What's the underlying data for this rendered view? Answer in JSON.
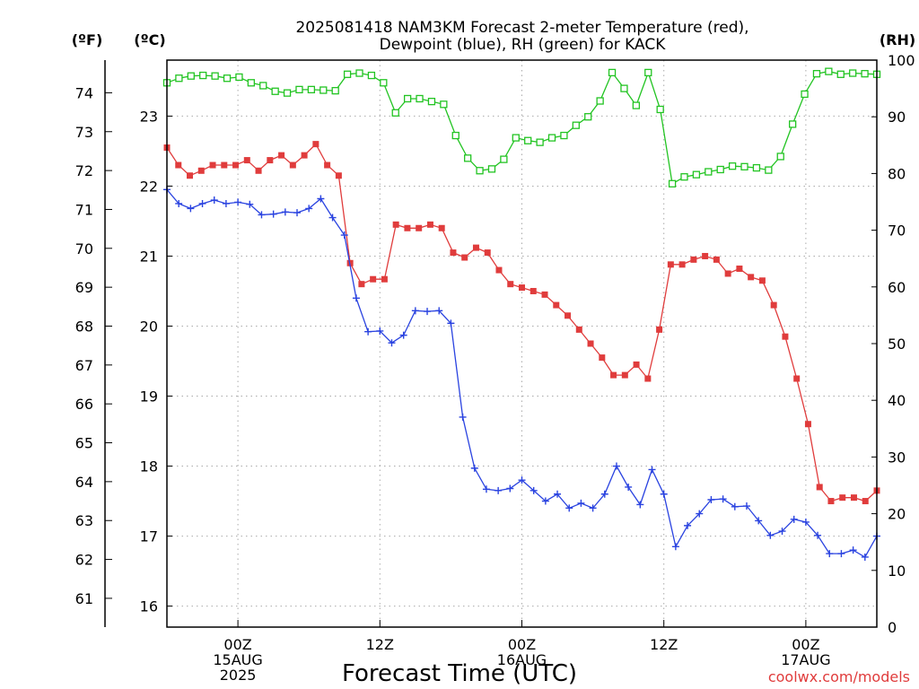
{
  "chart_data": {
    "type": "line",
    "title_line1": "2025081418 NAM3KM Forecast 2-meter Temperature (red),",
    "title_line2": "Dewpoint (blue), RH (green) for KACK",
    "xlabel": "Forecast Time (UTC)",
    "credit": "coolwx.com/models",
    "units": {
      "fahrenheit": "(ºF)",
      "celsius": "(ºC)",
      "rh": "(RH)"
    },
    "x_range_hours": [
      0,
      60
    ],
    "y_celsius_range": [
      15.7,
      23.8
    ],
    "y_rh_range": [
      0,
      100
    ],
    "x_ticks": [
      {
        "hour": 6,
        "lines": [
          "00Z",
          "15AUG",
          "2025"
        ]
      },
      {
        "hour": 18,
        "lines": [
          "12Z"
        ]
      },
      {
        "hour": 30,
        "lines": [
          "00Z",
          "16AUG"
        ]
      },
      {
        "hour": 42,
        "lines": [
          "12Z"
        ]
      },
      {
        "hour": 54,
        "lines": [
          "00Z",
          "17AUG"
        ]
      }
    ],
    "celsius_ticks": [
      16,
      17,
      18,
      19,
      20,
      21,
      22,
      23
    ],
    "fahrenheit_ticks": [
      61,
      62,
      63,
      64,
      65,
      66,
      67,
      68,
      69,
      70,
      71,
      72,
      73,
      74
    ],
    "rh_ticks": [
      0,
      10,
      20,
      30,
      40,
      50,
      60,
      70,
      80,
      90,
      100
    ],
    "series": [
      {
        "key": "temperature",
        "color": "#e03c3c",
        "marker": "filled-square",
        "axis": "celsius",
        "values": [
          22.55,
          22.3,
          22.15,
          22.22,
          22.3,
          22.3,
          22.3,
          22.37,
          22.22,
          22.37,
          22.44,
          22.3,
          22.44,
          22.6,
          22.3,
          22.15,
          20.9,
          20.6,
          20.67,
          20.67,
          21.45,
          21.4,
          21.4,
          21.45,
          21.4,
          21.05,
          20.98,
          21.12,
          21.05,
          20.8,
          20.6,
          20.55,
          20.5,
          20.45,
          20.3,
          20.15,
          19.95,
          19.75,
          19.55,
          19.3,
          19.3,
          19.45,
          19.25,
          19.95,
          20.88,
          20.88,
          20.95,
          21.0,
          20.95,
          20.75,
          20.82,
          20.7,
          20.65,
          20.3,
          19.85,
          19.25,
          18.6,
          17.7,
          17.5,
          17.55,
          17.55,
          17.5,
          17.65
        ]
      },
      {
        "key": "dewpoint",
        "color": "#2a43e0",
        "marker": "plus",
        "axis": "celsius",
        "values": [
          21.95,
          21.75,
          21.68,
          21.75,
          21.8,
          21.75,
          21.77,
          21.74,
          21.59,
          21.6,
          21.63,
          21.62,
          21.68,
          21.82,
          21.55,
          21.3,
          20.4,
          19.92,
          19.93,
          19.76,
          19.87,
          20.22,
          20.21,
          20.22,
          20.04,
          18.7,
          17.97,
          17.67,
          17.65,
          17.68,
          17.8,
          17.65,
          17.5,
          17.6,
          17.4,
          17.47,
          17.4,
          17.6,
          18.0,
          17.7,
          17.45,
          17.95,
          17.6,
          16.85,
          17.15,
          17.32,
          17.52,
          17.53,
          17.42,
          17.43,
          17.22,
          17.01,
          17.07,
          17.24,
          17.2,
          17.01,
          16.75,
          16.75,
          16.8,
          16.7,
          17.0
        ]
      },
      {
        "key": "rh",
        "color": "#22c422",
        "marker": "open-square",
        "axis": "rh",
        "values": [
          96,
          96.8,
          97.2,
          97.3,
          97.2,
          96.8,
          97,
          96,
          95.5,
          94.5,
          94.2,
          94.8,
          94.8,
          94.7,
          94.6,
          97.5,
          97.7,
          97.3,
          96,
          90.7,
          93.2,
          93.2,
          92.7,
          92.2,
          86.7,
          82.7,
          80.5,
          80.8,
          82.5,
          86.3,
          85.8,
          85.5,
          86.3,
          86.7,
          88.5,
          90,
          92.8,
          97.8,
          95,
          92,
          97.8,
          91.3,
          78.2,
          79.4,
          79.8,
          80.3,
          80.7,
          81.3,
          81.2,
          81,
          80.6,
          83,
          88.7,
          94,
          97.6,
          98,
          97.5,
          97.7,
          97.6,
          97.5
        ]
      }
    ],
    "grid": true
  }
}
